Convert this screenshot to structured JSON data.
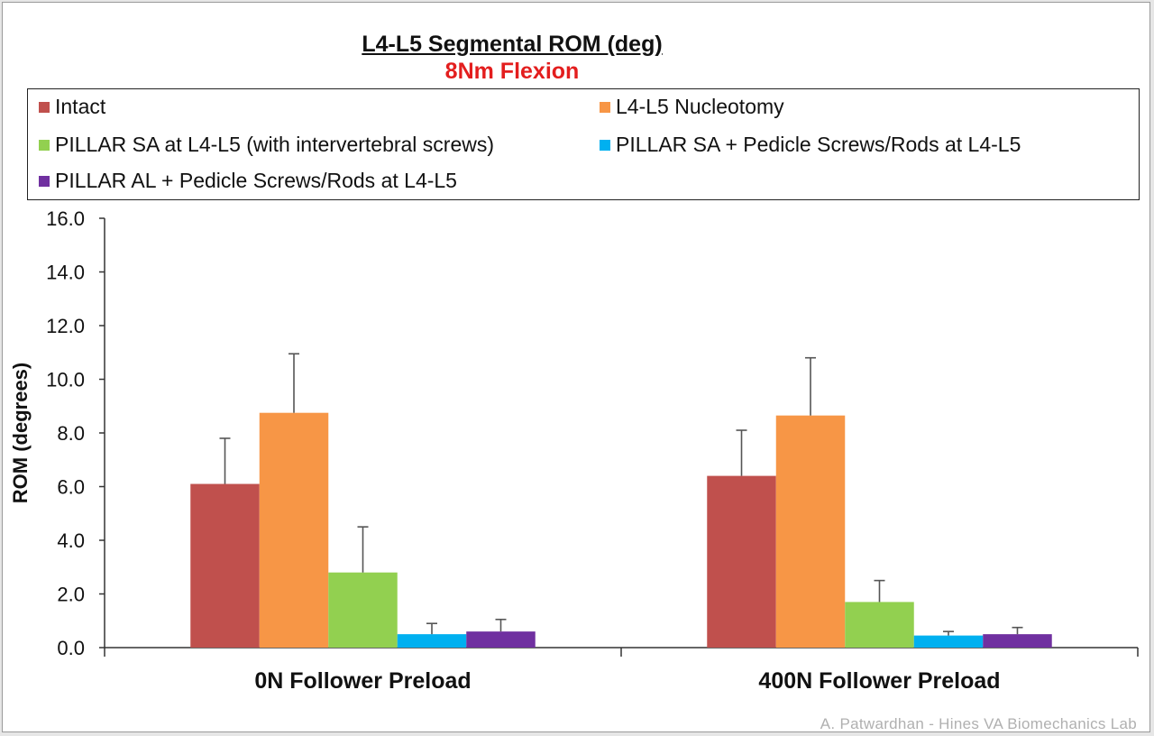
{
  "chart_data": {
    "type": "bar",
    "title": "L4-L5 Segmental ROM (deg)",
    "subtitle": "8Nm Flexion",
    "ylabel": "ROM (degrees)",
    "xlabel": "",
    "ylim": [
      0,
      16
    ],
    "yticks": [
      "0.0",
      "2.0",
      "4.0",
      "6.0",
      "8.0",
      "10.0",
      "12.0",
      "14.0",
      "16.0"
    ],
    "categories": [
      "0N Follower Preload",
      "400N Follower Preload"
    ],
    "series": [
      {
        "name": "Intact",
        "color": "#c0504d",
        "values": [
          6.1,
          6.4
        ],
        "errors": [
          1.7,
          1.7
        ]
      },
      {
        "name": "L4-L5 Nucleotomy",
        "color": "#f79646",
        "values": [
          8.75,
          8.65
        ],
        "errors": [
          2.2,
          2.15
        ]
      },
      {
        "name": "PILLAR SA at L4-L5 (with intervertebral screws)",
        "color": "#92d050",
        "values": [
          2.8,
          1.7
        ],
        "errors": [
          1.7,
          0.8
        ]
      },
      {
        "name": "PILLAR SA + Pedicle Screws/Rods at L4-L5",
        "color": "#00b0f0",
        "values": [
          0.5,
          0.45
        ],
        "errors": [
          0.4,
          0.15
        ]
      },
      {
        "name": "PILLAR AL + Pedicle Screws/Rods at L4-L5",
        "color": "#7030a0",
        "values": [
          0.6,
          0.5
        ],
        "errors": [
          0.45,
          0.25
        ]
      }
    ],
    "legend_position": "top",
    "grid": false
  },
  "credit": "A. Patwardhan - Hines VA Biomechanics Lab"
}
